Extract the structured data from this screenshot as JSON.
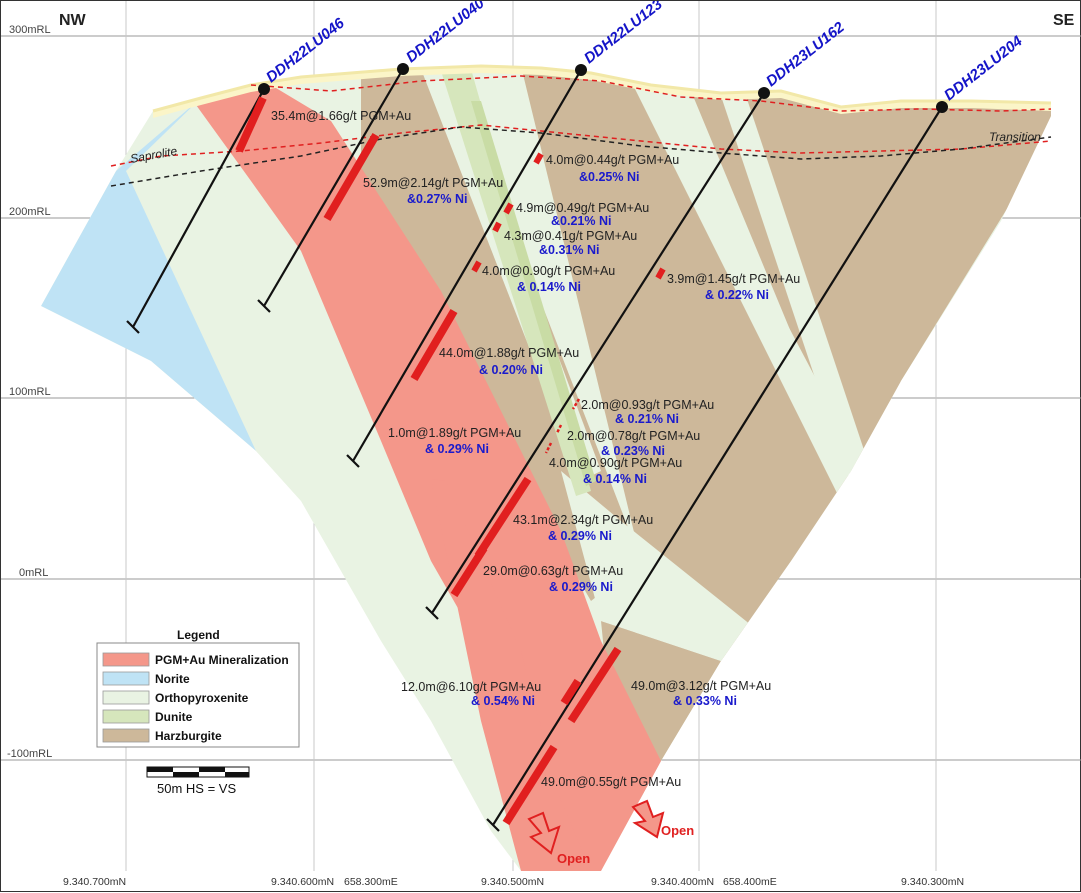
{
  "corners": {
    "left": "NW",
    "right": "SE"
  },
  "elevations": [
    "300mRL",
    "200mRL",
    "100mRL",
    "0mRL",
    "-100mRL"
  ],
  "holes": [
    "DDH22LU046",
    "DDH22LU040",
    "DDH22LU123",
    "DDH23LU162",
    "DDH23LU204"
  ],
  "zones": {
    "saprolite": "Saprolite",
    "transition": "Transition"
  },
  "intercepts": [
    {
      "main": "35.4m@1.66g/t PGM+Au",
      "ni": ""
    },
    {
      "main": "52.9m@2.14g/t PGM+Au",
      "ni": "&0.27% Ni"
    },
    {
      "main": "4.0m@0.44g/t PGM+Au",
      "ni": "&0.25% Ni"
    },
    {
      "main": "4.9m@0.49g/t PGM+Au",
      "ni": "&0.21% Ni"
    },
    {
      "main": "4.3m@0.41g/t PGM+Au",
      "ni": "&0.31% Ni"
    },
    {
      "main": "4.0m@0.90g/t PGM+Au",
      "ni": "& 0.14% Ni"
    },
    {
      "main": "3.9m@1.45g/t PGM+Au",
      "ni": "& 0.22% Ni"
    },
    {
      "main": "44.0m@1.88g/t PGM+Au",
      "ni": "& 0.20% Ni"
    },
    {
      "main": "2.0m@0.93g/t PGM+Au",
      "ni": "& 0.21% Ni"
    },
    {
      "main": "1.0m@1.89g/t PGM+Au",
      "ni": "& 0.29% Ni"
    },
    {
      "main": "2.0m@0.78g/t PGM+Au",
      "ni": "& 0.23% Ni"
    },
    {
      "main": "4.0m@0.90g/t PGM+Au",
      "ni": "& 0.14% Ni"
    },
    {
      "main": "43.1m@2.34g/t PGM+Au",
      "ni": "& 0.29% Ni"
    },
    {
      "main": "29.0m@0.63g/t PGM+Au",
      "ni": "& 0.29% Ni"
    },
    {
      "main": "12.0m@6.10g/t PGM+Au",
      "ni": "& 0.54% Ni"
    },
    {
      "main": "49.0m@3.12g/t PGM+Au",
      "ni": "& 0.33% Ni"
    },
    {
      "main": "49.0m@0.55g/t PGM+Au",
      "ni": ""
    }
  ],
  "open_labels": [
    "Open",
    "Open"
  ],
  "legend": {
    "title": "Legend",
    "items": [
      {
        "label": "PGM+Au Mineralization",
        "color": "#f4978a"
      },
      {
        "label": "Norite",
        "color": "#bfe3f5"
      },
      {
        "label": "Orthopyroxenite",
        "color": "#e9f3e3"
      },
      {
        "label": "Dunite",
        "color": "#d6e6bc"
      },
      {
        "label": "Harzburgite",
        "color": "#cdb89a"
      }
    ]
  },
  "scale": {
    "label": "50m  HS = VS"
  },
  "coords": [
    "9.340.700mN",
    "9.340.600mN",
    "658.300mE",
    "9.340.500mN",
    "9.340.400mN",
    "658.400mE",
    "9.340.300mN"
  ]
}
